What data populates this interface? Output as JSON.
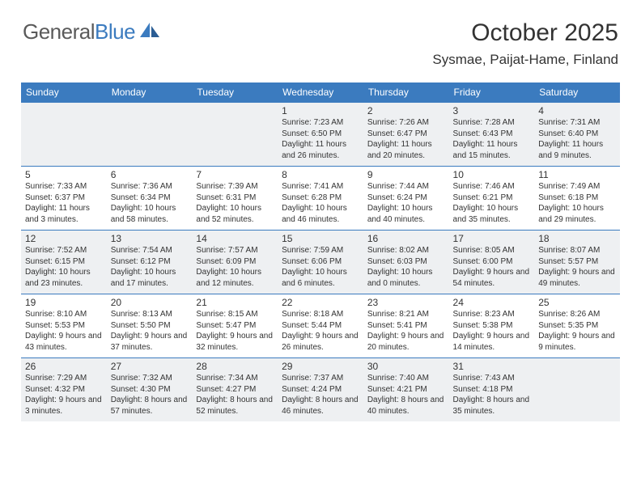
{
  "brand": {
    "part1": "General",
    "part2": "Blue"
  },
  "title": "October 2025",
  "location": "Sysmae, Paijat-Hame, Finland",
  "colors": {
    "header_bg": "#3b7bbf",
    "header_text": "#ffffff",
    "border": "#3b7bbf",
    "shaded_bg": "#eef0f2",
    "text": "#333333",
    "logo_gray": "#5a5a5a",
    "logo_blue": "#3b7bbf"
  },
  "weekdays": [
    "Sunday",
    "Monday",
    "Tuesday",
    "Wednesday",
    "Thursday",
    "Friday",
    "Saturday"
  ],
  "weeks": [
    [
      {
        "empty": true
      },
      {
        "empty": true
      },
      {
        "empty": true
      },
      {
        "day": "1",
        "sunrise": "Sunrise: 7:23 AM",
        "sunset": "Sunset: 6:50 PM",
        "daylight": "Daylight: 11 hours and 26 minutes."
      },
      {
        "day": "2",
        "sunrise": "Sunrise: 7:26 AM",
        "sunset": "Sunset: 6:47 PM",
        "daylight": "Daylight: 11 hours and 20 minutes."
      },
      {
        "day": "3",
        "sunrise": "Sunrise: 7:28 AM",
        "sunset": "Sunset: 6:43 PM",
        "daylight": "Daylight: 11 hours and 15 minutes."
      },
      {
        "day": "4",
        "sunrise": "Sunrise: 7:31 AM",
        "sunset": "Sunset: 6:40 PM",
        "daylight": "Daylight: 11 hours and 9 minutes."
      }
    ],
    [
      {
        "day": "5",
        "sunrise": "Sunrise: 7:33 AM",
        "sunset": "Sunset: 6:37 PM",
        "daylight": "Daylight: 11 hours and 3 minutes."
      },
      {
        "day": "6",
        "sunrise": "Sunrise: 7:36 AM",
        "sunset": "Sunset: 6:34 PM",
        "daylight": "Daylight: 10 hours and 58 minutes."
      },
      {
        "day": "7",
        "sunrise": "Sunrise: 7:39 AM",
        "sunset": "Sunset: 6:31 PM",
        "daylight": "Daylight: 10 hours and 52 minutes."
      },
      {
        "day": "8",
        "sunrise": "Sunrise: 7:41 AM",
        "sunset": "Sunset: 6:28 PM",
        "daylight": "Daylight: 10 hours and 46 minutes."
      },
      {
        "day": "9",
        "sunrise": "Sunrise: 7:44 AM",
        "sunset": "Sunset: 6:24 PM",
        "daylight": "Daylight: 10 hours and 40 minutes."
      },
      {
        "day": "10",
        "sunrise": "Sunrise: 7:46 AM",
        "sunset": "Sunset: 6:21 PM",
        "daylight": "Daylight: 10 hours and 35 minutes."
      },
      {
        "day": "11",
        "sunrise": "Sunrise: 7:49 AM",
        "sunset": "Sunset: 6:18 PM",
        "daylight": "Daylight: 10 hours and 29 minutes."
      }
    ],
    [
      {
        "day": "12",
        "sunrise": "Sunrise: 7:52 AM",
        "sunset": "Sunset: 6:15 PM",
        "daylight": "Daylight: 10 hours and 23 minutes."
      },
      {
        "day": "13",
        "sunrise": "Sunrise: 7:54 AM",
        "sunset": "Sunset: 6:12 PM",
        "daylight": "Daylight: 10 hours and 17 minutes."
      },
      {
        "day": "14",
        "sunrise": "Sunrise: 7:57 AM",
        "sunset": "Sunset: 6:09 PM",
        "daylight": "Daylight: 10 hours and 12 minutes."
      },
      {
        "day": "15",
        "sunrise": "Sunrise: 7:59 AM",
        "sunset": "Sunset: 6:06 PM",
        "daylight": "Daylight: 10 hours and 6 minutes."
      },
      {
        "day": "16",
        "sunrise": "Sunrise: 8:02 AM",
        "sunset": "Sunset: 6:03 PM",
        "daylight": "Daylight: 10 hours and 0 minutes."
      },
      {
        "day": "17",
        "sunrise": "Sunrise: 8:05 AM",
        "sunset": "Sunset: 6:00 PM",
        "daylight": "Daylight: 9 hours and 54 minutes."
      },
      {
        "day": "18",
        "sunrise": "Sunrise: 8:07 AM",
        "sunset": "Sunset: 5:57 PM",
        "daylight": "Daylight: 9 hours and 49 minutes."
      }
    ],
    [
      {
        "day": "19",
        "sunrise": "Sunrise: 8:10 AM",
        "sunset": "Sunset: 5:53 PM",
        "daylight": "Daylight: 9 hours and 43 minutes."
      },
      {
        "day": "20",
        "sunrise": "Sunrise: 8:13 AM",
        "sunset": "Sunset: 5:50 PM",
        "daylight": "Daylight: 9 hours and 37 minutes."
      },
      {
        "day": "21",
        "sunrise": "Sunrise: 8:15 AM",
        "sunset": "Sunset: 5:47 PM",
        "daylight": "Daylight: 9 hours and 32 minutes."
      },
      {
        "day": "22",
        "sunrise": "Sunrise: 8:18 AM",
        "sunset": "Sunset: 5:44 PM",
        "daylight": "Daylight: 9 hours and 26 minutes."
      },
      {
        "day": "23",
        "sunrise": "Sunrise: 8:21 AM",
        "sunset": "Sunset: 5:41 PM",
        "daylight": "Daylight: 9 hours and 20 minutes."
      },
      {
        "day": "24",
        "sunrise": "Sunrise: 8:23 AM",
        "sunset": "Sunset: 5:38 PM",
        "daylight": "Daylight: 9 hours and 14 minutes."
      },
      {
        "day": "25",
        "sunrise": "Sunrise: 8:26 AM",
        "sunset": "Sunset: 5:35 PM",
        "daylight": "Daylight: 9 hours and 9 minutes."
      }
    ],
    [
      {
        "day": "26",
        "sunrise": "Sunrise: 7:29 AM",
        "sunset": "Sunset: 4:32 PM",
        "daylight": "Daylight: 9 hours and 3 minutes."
      },
      {
        "day": "27",
        "sunrise": "Sunrise: 7:32 AM",
        "sunset": "Sunset: 4:30 PM",
        "daylight": "Daylight: 8 hours and 57 minutes."
      },
      {
        "day": "28",
        "sunrise": "Sunrise: 7:34 AM",
        "sunset": "Sunset: 4:27 PM",
        "daylight": "Daylight: 8 hours and 52 minutes."
      },
      {
        "day": "29",
        "sunrise": "Sunrise: 7:37 AM",
        "sunset": "Sunset: 4:24 PM",
        "daylight": "Daylight: 8 hours and 46 minutes."
      },
      {
        "day": "30",
        "sunrise": "Sunrise: 7:40 AM",
        "sunset": "Sunset: 4:21 PM",
        "daylight": "Daylight: 8 hours and 40 minutes."
      },
      {
        "day": "31",
        "sunrise": "Sunrise: 7:43 AM",
        "sunset": "Sunset: 4:18 PM",
        "daylight": "Daylight: 8 hours and 35 minutes."
      },
      {
        "empty": true
      }
    ]
  ]
}
